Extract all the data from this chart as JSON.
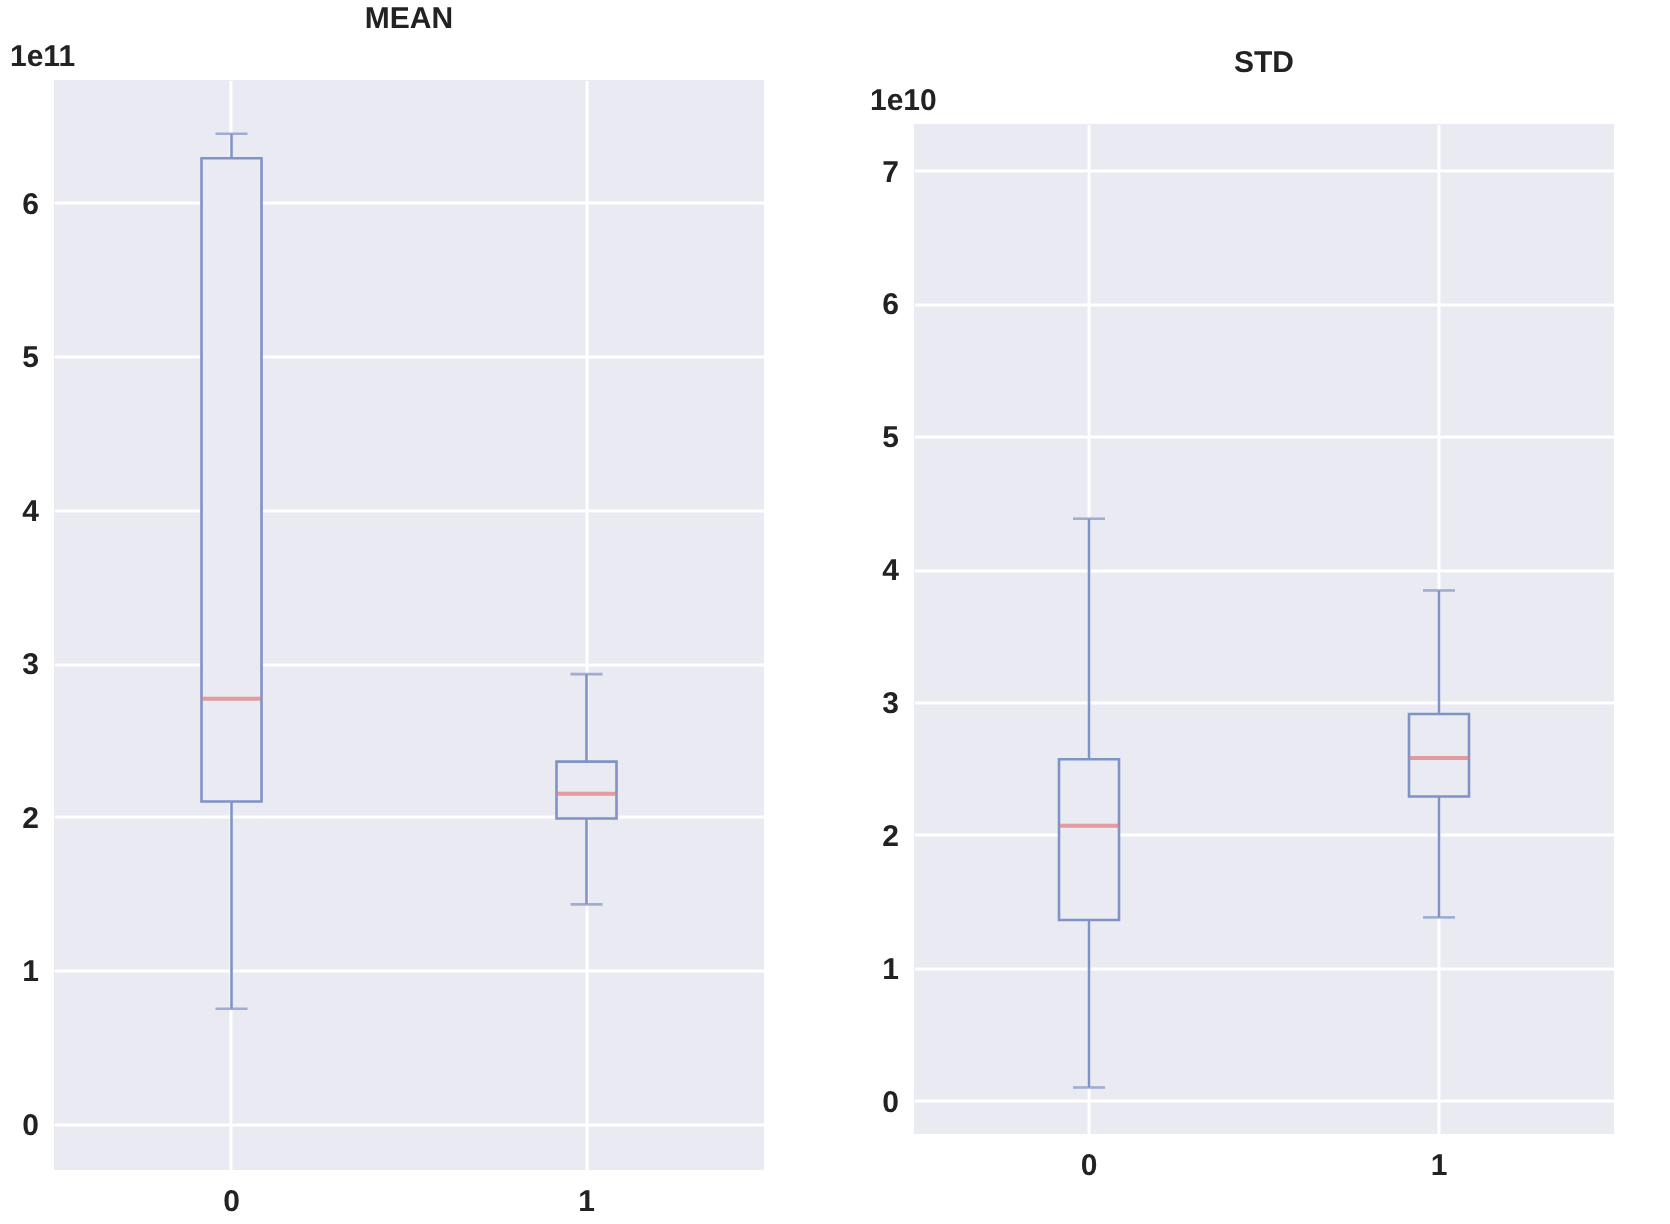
{
  "chart_data": [
    {
      "type": "box",
      "title": "MEAN",
      "annotations": [
        "1e11"
      ],
      "categories": [
        "0",
        "1"
      ],
      "ylim": [
        -0.3,
        6.8
      ],
      "yticks": [
        0,
        1,
        2,
        3,
        4,
        5,
        6
      ],
      "grid": true,
      "series": [
        {
          "color": "#7f93c6",
          "boxes": [
            {
              "low": 0.75,
              "q1": 2.1,
              "median": 2.77,
              "q3": 6.29,
              "high": 6.45
            },
            {
              "low": 1.43,
              "q1": 1.99,
              "median": 2.15,
              "q3": 2.36,
              "high": 2.93
            }
          ]
        }
      ]
    },
    {
      "type": "box",
      "title": "STD",
      "annotations": [
        "1e10"
      ],
      "categories": [
        "0",
        "1"
      ],
      "ylim": [
        -0.25,
        7.35
      ],
      "yticks": [
        0,
        1,
        2,
        3,
        4,
        5,
        6,
        7
      ],
      "grid": true,
      "series": [
        {
          "color": "#7f93c6",
          "boxes": [
            {
              "low": 0.1,
              "q1": 1.36,
              "median": 2.07,
              "q3": 2.57,
              "high": 4.38
            },
            {
              "low": 1.38,
              "q1": 2.29,
              "median": 2.58,
              "q3": 2.91,
              "high": 3.84
            }
          ]
        }
      ]
    }
  ]
}
